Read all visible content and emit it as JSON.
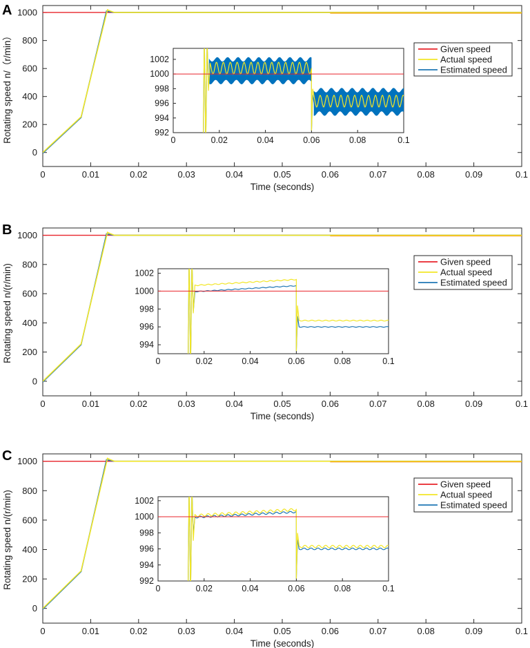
{
  "figure": {
    "colors": {
      "given": "#e8232a",
      "actual": "#f2e626",
      "estimated": "#1f77b4",
      "estimated_band": "#0072bd",
      "axis": "#262626"
    }
  },
  "chart_data": [
    {
      "panel": "A",
      "type": "line",
      "xlabel": "Time (seconds)",
      "ylabel": "Rotating speed n/（r/min）",
      "xlim": [
        0,
        0.1
      ],
      "ylim": [
        -100,
        1050
      ],
      "xticks": [
        "0",
        "0.01",
        "0.02",
        "0.03",
        "0.04",
        "0.05",
        "0.06",
        "0.07",
        "0.08",
        "0.09",
        "0.1"
      ],
      "yticks": [
        "0",
        "200",
        "400",
        "600",
        "800",
        "1000"
      ],
      "legend": [
        "Given speed",
        "Actual speed",
        "Estimated speed"
      ],
      "series": [
        {
          "name": "Given speed",
          "x": [
            0,
            0.1
          ],
          "y": [
            1000,
            1000
          ]
        },
        {
          "name": "Actual speed",
          "x": [
            0,
            0.008,
            0.0135,
            0.014,
            0.015,
            0.1
          ],
          "y": [
            0,
            255,
            1020,
            1012,
            1000,
            1000
          ]
        },
        {
          "name": "Estimated speed",
          "x": [
            0,
            0.008,
            0.0133,
            0.014,
            0.015,
            0.1
          ],
          "y": [
            -5,
            250,
            1010,
            1005,
            1000,
            1000
          ]
        }
      ],
      "inset": {
        "xlim": [
          0,
          0.1
        ],
        "ylim": [
          992,
          1003.5
        ],
        "xticks": [
          "0",
          "0.02",
          "0.04",
          "0.06",
          "0.08",
          "0.1"
        ],
        "yticks": [
          "992",
          "994",
          "996",
          "998",
          "1000",
          "1002"
        ],
        "given": 1000,
        "transient_t": 0.0135,
        "step_t": 0.06,
        "actual_level": [
          1000.8,
          996.3
        ],
        "estimated_level": [
          1000.4,
          996.0
        ],
        "estimated_band": [
          [
            998.9,
            1002.0
          ],
          [
            994.6,
            997.8
          ]
        ],
        "ripple_amp": 0.8
      }
    },
    {
      "panel": "B",
      "type": "line",
      "xlabel": "Time (seconds)",
      "ylabel": "Rotating speed n/(r/min)",
      "xlim": [
        0,
        0.1
      ],
      "ylim": [
        -100,
        1050
      ],
      "xticks": [
        "0",
        "0.01",
        "0.02",
        "0.03",
        "0.04",
        "0.05",
        "0.06",
        "0.07",
        "0.08",
        "0.09",
        "0.1"
      ],
      "yticks": [
        "0",
        "200",
        "400",
        "600",
        "800",
        "1000"
      ],
      "legend": [
        "Given speed",
        "Actual speed",
        "Estimated speed"
      ],
      "series": [
        {
          "name": "Given speed",
          "x": [
            0,
            0.1
          ],
          "y": [
            1000,
            1000
          ]
        },
        {
          "name": "Actual speed",
          "x": [
            0,
            0.008,
            0.0135,
            0.014,
            0.015,
            0.1
          ],
          "y": [
            0,
            255,
            1020,
            1012,
            1000,
            1000
          ]
        },
        {
          "name": "Estimated speed",
          "x": [
            0,
            0.008,
            0.0133,
            0.014,
            0.015,
            0.1
          ],
          "y": [
            -5,
            250,
            1010,
            1005,
            1000,
            1000
          ]
        }
      ],
      "inset": {
        "xlim": [
          0,
          0.1
        ],
        "ylim": [
          993,
          1002.5
        ],
        "xticks": [
          "0",
          "0.02",
          "0.04",
          "0.06",
          "0.08",
          "0.1"
        ],
        "yticks": [
          "994",
          "996",
          "998",
          "1000",
          "1002"
        ],
        "given": 1000,
        "transient_t": 0.0135,
        "step_t": 0.06,
        "actual_level": [
          [
            1000.6,
            1001.3
          ],
          [
            996.7,
            996.7
          ]
        ],
        "estimated_level": [
          [
            999.9,
            1000.6
          ],
          [
            996.0,
            996.0
          ]
        ],
        "ripple_amp": 0.05
      }
    },
    {
      "panel": "C",
      "type": "line",
      "xlabel": "Time (seconds)",
      "ylabel": "Rotating speed n/(r/min)",
      "xlim": [
        0,
        0.1
      ],
      "ylim": [
        -100,
        1050
      ],
      "xticks": [
        "0",
        "0.01",
        "0.02",
        "0.03",
        "0.04",
        "0.05",
        "0.06",
        "0.07",
        "0.08",
        "0.09",
        "0.1"
      ],
      "yticks": [
        "0",
        "200",
        "400",
        "600",
        "800",
        "1000"
      ],
      "legend": [
        "Given speed",
        "Actual speed",
        "Estimated speed"
      ],
      "series": [
        {
          "name": "Given speed",
          "x": [
            0,
            0.1
          ],
          "y": [
            1000,
            1000
          ]
        },
        {
          "name": "Actual speed",
          "x": [
            0,
            0.008,
            0.0135,
            0.014,
            0.015,
            0.1
          ],
          "y": [
            0,
            255,
            1020,
            1012,
            1000,
            1000
          ]
        },
        {
          "name": "Estimated speed",
          "x": [
            0,
            0.008,
            0.0133,
            0.014,
            0.015,
            0.1
          ],
          "y": [
            -5,
            250,
            1010,
            1005,
            1000,
            1000
          ]
        }
      ],
      "inset": {
        "xlim": [
          0,
          0.1
        ],
        "ylim": [
          992,
          1002.5
        ],
        "xticks": [
          "0",
          "0.02",
          "0.04",
          "0.06",
          "0.08",
          "0.1"
        ],
        "yticks": [
          "992",
          "994",
          "996",
          "998",
          "1000",
          "1002"
        ],
        "given": 1000,
        "transient_t": 0.0135,
        "step_t": 0.06,
        "actual_level": [
          [
            1000.1,
            1000.9
          ],
          [
            996.3,
            996.3
          ]
        ],
        "estimated_level": [
          [
            999.9,
            1000.6
          ],
          [
            996.0,
            996.0
          ]
        ],
        "ripple_amp": 0.15
      }
    }
  ]
}
